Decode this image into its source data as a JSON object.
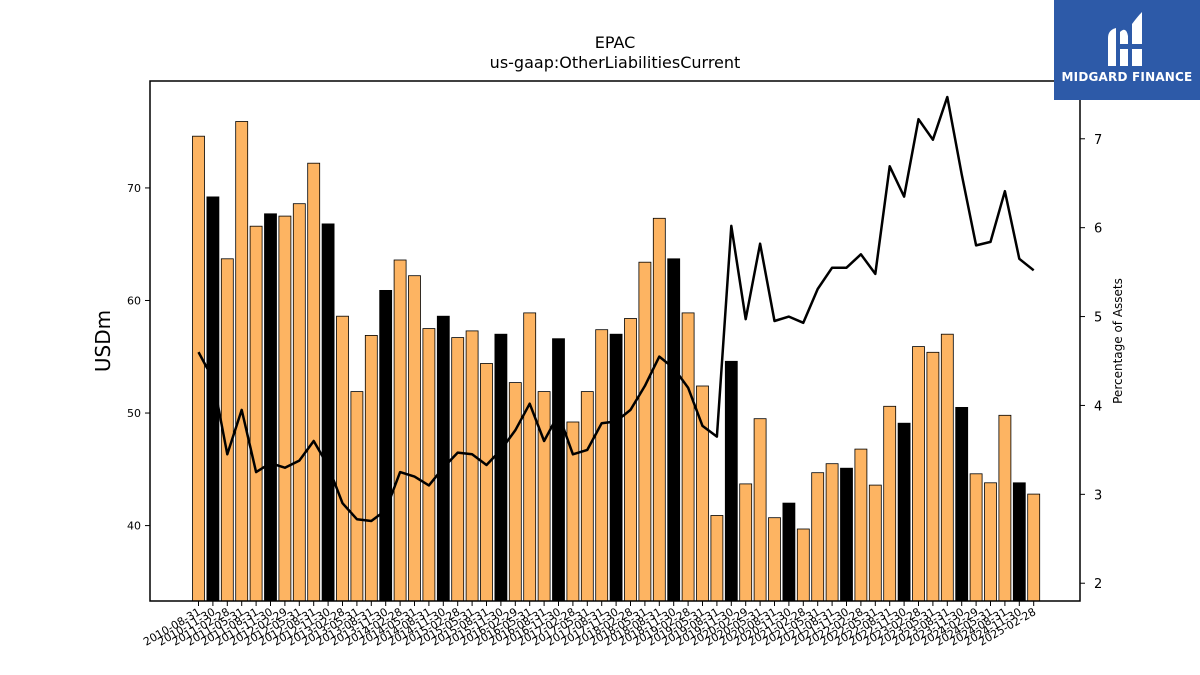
{
  "chart_data": {
    "type": "bar",
    "title": "EPAC",
    "subtitle": "us-gaap:OtherLiabilitiesCurrent",
    "ylabel": "USDm",
    "y2label": "Percentage of Assets",
    "ylim": [
      33.3,
      79.5
    ],
    "y2lim": [
      1.8,
      7.65
    ],
    "yticks": [
      40,
      50,
      60,
      70
    ],
    "y2ticks": [
      2,
      3,
      4,
      5,
      6,
      7
    ],
    "colors": {
      "bar": "#fdb462",
      "bar_highlight": "#000000",
      "line": "#000000"
    },
    "categories": [
      "2010-08-31",
      "2010-11-30",
      "2011-02-28",
      "2011-05-31",
      "2011-08-31",
      "2011-11-30",
      "2012-02-29",
      "2012-05-31",
      "2012-08-31",
      "2012-11-30",
      "2013-02-28",
      "2013-05-31",
      "2013-08-31",
      "2013-11-30",
      "2014-02-28",
      "2014-05-31",
      "2014-08-31",
      "2014-11-30",
      "2015-02-28",
      "2015-05-31",
      "2015-08-31",
      "2015-11-30",
      "2016-02-29",
      "2016-05-31",
      "2016-08-31",
      "2016-11-30",
      "2017-02-28",
      "2017-05-31",
      "2017-08-31",
      "2017-11-30",
      "2018-02-28",
      "2018-05-31",
      "2018-08-31",
      "2018-11-30",
      "2019-02-28",
      "2019-05-31",
      "2019-08-31",
      "2019-11-30",
      "2020-02-29",
      "2020-05-31",
      "2020-08-31",
      "2020-11-30",
      "2021-02-28",
      "2021-05-31",
      "2021-08-31",
      "2021-11-30",
      "2022-02-28",
      "2022-05-31",
      "2022-08-31",
      "2022-11-30",
      "2023-02-28",
      "2023-05-31",
      "2023-08-31",
      "2023-11-30",
      "2024-02-29",
      "2024-05-31",
      "2024-08-31",
      "2024-11-30",
      "2025-02-28"
    ],
    "series": [
      {
        "type": "bar",
        "values": [
          74.6,
          69.2,
          63.7,
          75.9,
          66.6,
          67.7,
          67.5,
          68.6,
          72.2,
          66.8,
          58.6,
          51.9,
          56.9,
          60.9,
          63.6,
          62.2,
          57.5,
          58.6,
          56.7,
          57.3,
          54.4,
          57.0,
          52.7,
          58.9,
          51.9,
          56.6,
          49.2,
          51.9,
          57.4,
          57.0,
          58.4,
          63.4,
          67.3,
          63.7,
          58.9,
          52.4,
          40.9,
          54.6,
          43.7,
          49.5,
          40.7,
          42.0,
          39.7,
          44.7,
          45.5,
          45.1,
          46.8,
          43.6,
          50.6,
          49.1,
          55.9,
          55.4,
          57.0,
          50.5,
          44.6,
          43.8,
          49.8,
          43.8,
          42.8
        ],
        "highlight": [
          false,
          true,
          false,
          false,
          false,
          true,
          false,
          false,
          false,
          true,
          false,
          false,
          false,
          true,
          false,
          false,
          false,
          true,
          false,
          false,
          false,
          true,
          false,
          false,
          false,
          true,
          false,
          false,
          false,
          true,
          false,
          false,
          false,
          true,
          false,
          false,
          false,
          true,
          false,
          false,
          false,
          true,
          false,
          false,
          false,
          true,
          false,
          false,
          false,
          true,
          false,
          false,
          false,
          true,
          false,
          false,
          false,
          true,
          false
        ]
      },
      {
        "type": "line",
        "axis": "right",
        "values": [
          4.6,
          4.3,
          3.45,
          3.95,
          3.25,
          3.35,
          3.3,
          3.38,
          3.6,
          3.32,
          2.9,
          2.72,
          2.7,
          2.82,
          3.25,
          3.2,
          3.1,
          3.3,
          3.47,
          3.45,
          3.33,
          3.5,
          3.72,
          4.02,
          3.6,
          3.9,
          3.45,
          3.5,
          3.8,
          3.82,
          3.95,
          4.22,
          4.55,
          4.42,
          4.2,
          3.77,
          3.65,
          6.02,
          4.97,
          5.82,
          4.95,
          5.0,
          4.93,
          5.31,
          5.55,
          5.55,
          5.7,
          5.48,
          6.69,
          6.35,
          7.22,
          6.99,
          7.47,
          6.6,
          5.8,
          5.84,
          6.41,
          5.65,
          5.52
        ]
      }
    ]
  },
  "logo": {
    "text": "MIDGARD FINANCE"
  }
}
